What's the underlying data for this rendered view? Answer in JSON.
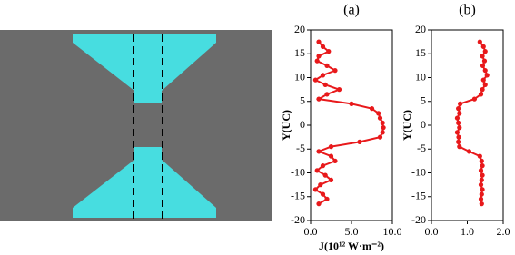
{
  "chart_data": [
    {
      "type": "line",
      "title": "(a)",
      "y_label": "Y(UC)",
      "x_label": "J(10¹² W·m⁻²)",
      "xlim": [
        0,
        10
      ],
      "xticks": [
        {
          "value": 0,
          "label": "0.0"
        },
        {
          "value": 5,
          "label": "5.0"
        },
        {
          "value": 10,
          "label": "10.0"
        }
      ],
      "ylim": [
        -20,
        20
      ],
      "yticks": [
        -20,
        -15,
        -10,
        -5,
        0,
        5,
        10,
        15,
        20
      ],
      "series": [
        {
          "color": "#e8191b",
          "x": [
            1.0,
            1.5,
            2.2,
            1.0,
            0.8,
            2.0,
            3.0,
            1.5,
            0.6,
            1.8,
            3.5,
            2.0,
            1.0,
            5.0,
            7.5,
            8.3,
            8.5,
            8.8,
            8.9,
            8.8,
            8.5,
            6.0,
            2.5,
            1.0,
            2.5,
            3.0,
            1.5,
            0.8,
            1.8,
            2.5,
            1.2,
            0.6,
            1.5,
            2.0,
            1.0
          ],
          "values": [
            17.5,
            16.5,
            15.5,
            14.5,
            13.5,
            12.5,
            11.5,
            10.5,
            9.5,
            8.5,
            7.5,
            6.5,
            5.5,
            4.5,
            3.5,
            2.5,
            1.5,
            0.5,
            -0.5,
            -1.5,
            -2.5,
            -3.5,
            -4.5,
            -5.5,
            -6.5,
            -7.5,
            -8.5,
            -9.5,
            -10.5,
            -11.5,
            -12.5,
            -13.5,
            -14.5,
            -15.5,
            -16.5
          ]
        }
      ]
    },
    {
      "type": "line",
      "title": "(b)",
      "y_label": "Y(UC)",
      "xlim": [
        0,
        2
      ],
      "xticks": [
        {
          "value": 0,
          "label": "0.0"
        },
        {
          "value": 1,
          "label": "1.0"
        },
        {
          "value": 2,
          "label": "2.0"
        }
      ],
      "ylim": [
        -20,
        20
      ],
      "yticks": [
        -20,
        -15,
        -10,
        -5,
        0,
        5,
        10,
        15,
        20
      ],
      "series": [
        {
          "color": "#e8191b",
          "x": [
            1.35,
            1.45,
            1.5,
            1.42,
            1.48,
            1.43,
            1.5,
            1.55,
            1.45,
            1.5,
            1.42,
            1.38,
            1.2,
            0.8,
            0.75,
            0.78,
            0.72,
            0.75,
            0.78,
            0.72,
            0.76,
            0.75,
            0.78,
            1.05,
            1.35,
            1.4,
            1.42,
            1.38,
            1.42,
            1.4,
            1.38,
            1.42,
            1.4,
            1.38,
            1.4
          ],
          "values": [
            17.5,
            16.5,
            15.5,
            14.5,
            13.5,
            12.5,
            11.5,
            10.5,
            9.5,
            8.5,
            7.5,
            6.5,
            5.5,
            4.5,
            3.5,
            2.5,
            1.5,
            0.5,
            -0.5,
            -1.5,
            -2.5,
            -3.5,
            -4.5,
            -5.5,
            -6.5,
            -7.5,
            -8.5,
            -9.5,
            -10.5,
            -11.5,
            -12.5,
            -13.5,
            -14.5,
            -15.5,
            -16.5
          ]
        }
      ]
    }
  ]
}
